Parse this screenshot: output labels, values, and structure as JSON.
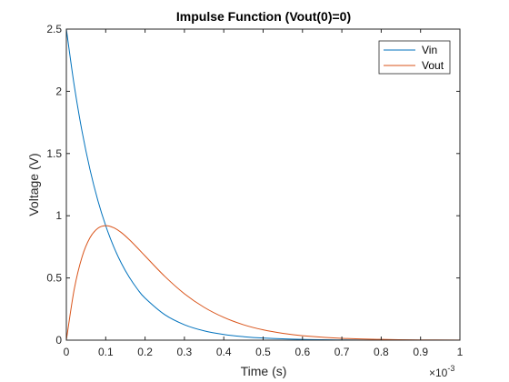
{
  "chart_data": {
    "type": "line",
    "title": "Impulse Function (Vout(0)=0)",
    "xlabel": "Time (s)",
    "ylabel": "Voltage (V)",
    "x_multiplier": {
      "base": "×10",
      "exponent": "-3"
    },
    "xlim": [
      0,
      1
    ],
    "ylim": [
      0,
      2.5
    ],
    "x_ticks": [
      0,
      0.1,
      0.2,
      0.3,
      0.4,
      0.5,
      0.6,
      0.7,
      0.8,
      0.9,
      1
    ],
    "x_tick_labels": [
      "0",
      "0.1",
      "0.2",
      "0.3",
      "0.4",
      "0.5",
      "0.6",
      "0.7",
      "0.8",
      "0.9",
      "1"
    ],
    "y_ticks": [
      0,
      0.5,
      1,
      1.5,
      2,
      2.5
    ],
    "y_tick_labels": [
      "0",
      "0.5",
      "1",
      "1.5",
      "2",
      "2.5"
    ],
    "grid": false,
    "legend_position": "top-right",
    "series": [
      {
        "name": "Vin",
        "color": "#0072BD",
        "x": [
          0,
          0.02,
          0.04,
          0.06,
          0.08,
          0.1,
          0.12,
          0.14,
          0.16,
          0.18,
          0.2,
          0.25,
          0.3,
          0.35,
          0.4,
          0.45,
          0.5,
          0.6,
          0.7,
          0.8,
          0.9,
          1
        ],
        "y": [
          2.5,
          2.047,
          1.676,
          1.372,
          1.123,
          0.92,
          0.753,
          0.617,
          0.505,
          0.413,
          0.338,
          0.205,
          0.124,
          0.075,
          0.046,
          0.028,
          0.017,
          0.006,
          0.002,
          0.001,
          0.0003,
          0.0001
        ]
      },
      {
        "name": "Vout",
        "color": "#D95319",
        "x": [
          0,
          0.02,
          0.04,
          0.06,
          0.08,
          0.1,
          0.12,
          0.14,
          0.16,
          0.18,
          0.2,
          0.25,
          0.3,
          0.35,
          0.4,
          0.45,
          0.5,
          0.55,
          0.6,
          0.7,
          0.8,
          0.9,
          1
        ],
        "y": [
          0,
          0.409,
          0.67,
          0.823,
          0.899,
          0.92,
          0.904,
          0.864,
          0.808,
          0.744,
          0.677,
          0.513,
          0.373,
          0.264,
          0.183,
          0.124,
          0.083,
          0.055,
          0.036,
          0.015,
          0.006,
          0.002,
          0.001
        ]
      }
    ]
  }
}
